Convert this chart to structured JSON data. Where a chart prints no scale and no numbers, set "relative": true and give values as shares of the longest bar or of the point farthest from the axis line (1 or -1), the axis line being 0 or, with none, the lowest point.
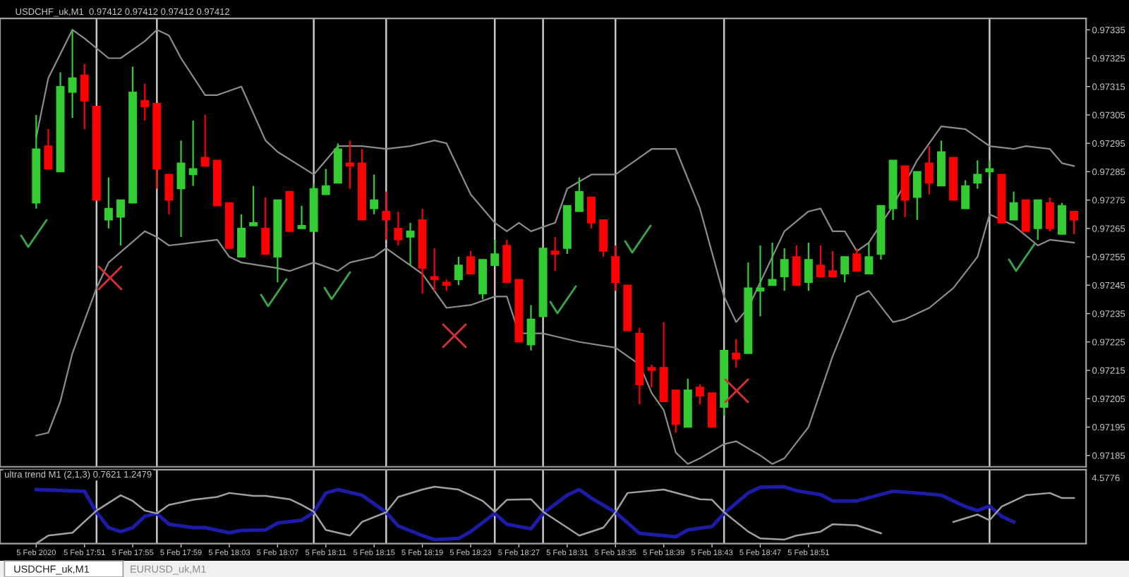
{
  "chart_data": [
    {
      "type": "candlestick",
      "title": "USDCHF_uk,M1  0.97412 0.97412 0.97412 0.97412",
      "x": [
        "2020-02-05T17:47",
        "2020-02-05T17:48",
        "2020-02-05T17:49",
        "2020-02-05T17:50",
        "2020-02-05T17:51",
        "2020-02-05T17:52",
        "2020-02-05T17:53",
        "2020-02-05T17:54",
        "2020-02-05T17:55",
        "2020-02-05T17:56",
        "2020-02-05T17:57",
        "2020-02-05T17:58",
        "2020-02-05T17:59",
        "2020-02-05T18:00",
        "2020-02-05T18:01",
        "2020-02-05T18:02",
        "2020-02-05T18:03",
        "2020-02-05T18:04",
        "2020-02-05T18:05",
        "2020-02-05T18:06",
        "2020-02-05T18:07",
        "2020-02-05T18:08",
        "2020-02-05T18:09",
        "2020-02-05T18:10",
        "2020-02-05T18:11",
        "2020-02-05T18:12",
        "2020-02-05T18:13",
        "2020-02-05T18:14",
        "2020-02-05T18:15",
        "2020-02-05T18:16",
        "2020-02-05T18:17",
        "2020-02-05T18:18",
        "2020-02-05T18:19",
        "2020-02-05T18:20",
        "2020-02-05T18:21",
        "2020-02-05T18:22",
        "2020-02-05T18:23",
        "2020-02-05T18:24",
        "2020-02-05T18:25",
        "2020-02-05T18:26",
        "2020-02-05T18:27",
        "2020-02-05T18:28",
        "2020-02-05T18:29",
        "2020-02-05T18:30",
        "2020-02-05T18:31",
        "2020-02-05T18:32",
        "2020-02-05T18:33",
        "2020-02-05T18:34",
        "2020-02-05T18:35",
        "2020-02-05T18:36",
        "2020-02-05T18:37",
        "2020-02-05T18:38",
        "2020-02-05T18:39",
        "2020-02-05T18:40",
        "2020-02-05T18:41",
        "2020-02-05T18:42",
        "2020-02-05T18:43",
        "2020-02-05T18:44",
        "2020-02-05T18:45",
        "2020-02-05T18:46",
        "2020-02-05T18:47",
        "2020-02-05T18:48",
        "2020-02-05T18:49",
        "2020-02-05T18:50",
        "2020-02-05T18:51",
        "2020-02-05T18:52",
        "2020-02-05T18:53",
        "2020-02-05T18:54",
        "2020-02-05T18:55",
        "2020-02-05T18:56",
        "2020-02-05T18:57",
        "2020-02-05T18:58",
        "2020-02-05T18:59",
        "2020-02-05T19:00",
        "2020-02-05T19:01",
        "2020-02-05T19:02",
        "2020-02-05T19:03",
        "2020-02-05T19:04",
        "2020-02-05T19:05",
        "2020-02-05T19:06",
        "2020-02-05T19:07",
        "2020-02-05T19:08",
        "2020-02-05T19:09",
        "2020-02-05T19:10",
        "2020-02-05T19:11",
        "2020-02-05T19:12",
        "2020-02-05T19:13"
      ],
      "ohlc": [
        [
          0.97274,
          0.97305,
          0.97272,
          0.97293
        ],
        [
          0.97294,
          0.973,
          0.97286,
          0.97286
        ],
        [
          0.97285,
          0.9732,
          0.97285,
          0.97315
        ],
        [
          0.97313,
          0.97335,
          0.97304,
          0.97318
        ],
        [
          0.97319,
          0.97323,
          0.973,
          0.9731
        ],
        [
          0.97308,
          0.97308,
          0.97275,
          0.97275
        ],
        [
          0.97268,
          0.97283,
          0.97265,
          0.97272
        ],
        [
          0.97269,
          0.97275,
          0.97259,
          0.97275
        ],
        [
          0.97274,
          0.97322,
          0.97274,
          0.97313
        ],
        [
          0.9731,
          0.97316,
          0.97303,
          0.97308
        ],
        [
          0.97309,
          0.97309,
          0.97279,
          0.97286
        ],
        [
          0.97284,
          0.97284,
          0.9727,
          0.97275
        ],
        [
          0.97279,
          0.97296,
          0.97262,
          0.97288
        ],
        [
          0.97284,
          0.97303,
          0.9728,
          0.97286
        ],
        [
          0.9729,
          0.97305,
          0.97287,
          0.97287
        ],
        [
          0.97289,
          0.97289,
          0.97273,
          0.97273
        ],
        [
          0.97274,
          0.97274,
          0.97258,
          0.97258
        ],
        [
          0.97255,
          0.9727,
          0.97255,
          0.97265
        ],
        [
          0.97266,
          0.9728,
          0.97266,
          0.97267
        ],
        [
          0.97265,
          0.97276,
          0.97256,
          0.97256
        ],
        [
          0.97255,
          0.97275,
          0.97246,
          0.97275
        ],
        [
          0.97278,
          0.97278,
          0.97264,
          0.97264
        ],
        [
          0.97265,
          0.97273,
          0.97265,
          0.97266
        ],
        [
          0.97264,
          0.97281,
          0.97264,
          0.97279
        ],
        [
          0.97277,
          0.97286,
          0.97277,
          0.9728
        ],
        [
          0.97281,
          0.97295,
          0.97281,
          0.97293
        ],
        [
          0.97288,
          0.97296,
          0.97279,
          0.97287
        ],
        [
          0.97288,
          0.97293,
          0.97268,
          0.97268
        ],
        [
          0.97272,
          0.97284,
          0.9727,
          0.97275
        ],
        [
          0.97271,
          0.97278,
          0.97261,
          0.97268
        ],
        [
          0.97265,
          0.97271,
          0.97259,
          0.97261
        ],
        [
          0.97262,
          0.97267,
          0.97252,
          0.97264
        ],
        [
          0.97268,
          0.97272,
          0.97242,
          0.97251
        ],
        [
          0.97248,
          0.97258,
          0.97243,
          0.97247
        ],
        [
          0.97246,
          0.97247,
          0.97243,
          0.97245
        ],
        [
          0.97247,
          0.97255,
          0.97245,
          0.97252
        ],
        [
          0.97255,
          0.97257,
          0.97249,
          0.97249
        ],
        [
          0.97242,
          0.97254,
          0.9724,
          0.97254
        ],
        [
          0.97252,
          0.97261,
          0.97252,
          0.97256
        ],
        [
          0.97259,
          0.97261,
          0.97246,
          0.97246
        ],
        [
          0.97247,
          0.97247,
          0.97225,
          0.97225
        ],
        [
          0.97224,
          0.97238,
          0.97222,
          0.97233
        ],
        [
          0.97234,
          0.97258,
          0.97234,
          0.97258
        ],
        [
          0.97257,
          0.97262,
          0.9725,
          0.97256
        ],
        [
          0.97258,
          0.97273,
          0.97256,
          0.97273
        ],
        [
          0.97271,
          0.97283,
          0.97271,
          0.97278
        ],
        [
          0.97276,
          0.97276,
          0.97265,
          0.97267
        ],
        [
          0.97268,
          0.97268,
          0.97255,
          0.97257
        ],
        [
          0.97255,
          0.97259,
          0.97243,
          0.97246
        ],
        [
          0.97245,
          0.97245,
          0.97229,
          0.97229
        ],
        [
          0.97228,
          0.9723,
          0.97203,
          0.9721
        ],
        [
          0.97216,
          0.97217,
          0.97209,
          0.97215
        ],
        [
          0.97216,
          0.97232,
          0.97204,
          0.97204
        ],
        [
          0.97208,
          0.97208,
          0.97193,
          0.97196
        ],
        [
          0.97195,
          0.97212,
          0.97195,
          0.97208
        ],
        [
          0.97209,
          0.9721,
          0.97203,
          0.97206
        ],
        [
          0.97207,
          0.97207,
          0.97195,
          0.97195
        ],
        [
          0.97202,
          0.97222,
          0.97199,
          0.97222
        ],
        [
          0.97221,
          0.97226,
          0.97216,
          0.97219
        ],
        [
          0.97221,
          0.97253,
          0.97221,
          0.97244
        ],
        [
          0.97243,
          0.97259,
          0.97234,
          0.97244
        ],
        [
          0.97245,
          0.9726,
          0.97245,
          0.97247
        ],
        [
          0.97248,
          0.97258,
          0.97243,
          0.97254
        ],
        [
          0.97255,
          0.97259,
          0.97245,
          0.97245
        ],
        [
          0.97246,
          0.9726,
          0.97243,
          0.97254
        ],
        [
          0.97252,
          0.97259,
          0.97248,
          0.97248
        ],
        [
          0.9725,
          0.97257,
          0.97248,
          0.97248
        ],
        [
          0.97249,
          0.97255,
          0.97246,
          0.97255
        ],
        [
          0.97256,
          0.97258,
          0.9725,
          0.9725
        ],
        [
          0.97249,
          0.9726,
          0.97249,
          0.97255
        ],
        [
          0.97256,
          0.97273,
          0.97254,
          0.97273
        ],
        [
          0.97272,
          0.97289,
          0.97268,
          0.97289
        ],
        [
          0.97287,
          0.97287,
          0.97269,
          0.97275
        ],
        [
          0.97276,
          0.97285,
          0.97268,
          0.97285
        ],
        [
          0.97288,
          0.97294,
          0.97277,
          0.97281
        ],
        [
          0.9728,
          0.97296,
          0.9728,
          0.97292
        ],
        [
          0.9729,
          0.9729,
          0.97275,
          0.97275
        ],
        [
          0.97272,
          0.97282,
          0.97272,
          0.9728
        ],
        [
          0.97281,
          0.97289,
          0.97279,
          0.97284
        ],
        [
          0.97285,
          0.97289,
          0.97283,
          0.97286
        ],
        [
          0.97284,
          0.97284,
          0.97267,
          0.97267
        ],
        [
          0.97268,
          0.97278,
          0.97268,
          0.97274
        ],
        [
          0.97275,
          0.97275,
          0.97264,
          0.97264
        ],
        [
          0.97265,
          0.97275,
          0.97261,
          0.97275
        ],
        [
          0.97274,
          0.97276,
          0.97264,
          0.97265
        ],
        [
          0.97263,
          0.97274,
          0.97263,
          0.97273
        ],
        [
          0.97271,
          0.97271,
          0.97263,
          0.97268
        ]
      ],
      "colors": [
        "#33cc33",
        "#ff0000",
        "#33cc33",
        "#33cc33",
        "#ff0000",
        "#ff0000",
        "#33cc33",
        "#33cc33",
        "#33cc33",
        "#ff0000",
        "#ff0000",
        "#ff0000",
        "#33cc33",
        "#33cc33",
        "#ff0000",
        "#ff0000",
        "#ff0000",
        "#33cc33",
        "#33cc33",
        "#ff0000",
        "#33cc33",
        "#ff0000",
        "#33cc33",
        "#33cc33",
        "#33cc33",
        "#33cc33",
        "#ff0000",
        "#ff0000",
        "#33cc33",
        "#ff0000",
        "#ff0000",
        "#33cc33",
        "#ff0000",
        "#ff0000",
        "#ff0000",
        "#33cc33",
        "#ff0000",
        "#33cc33",
        "#33cc33",
        "#ff0000",
        "#ff0000",
        "#33cc33",
        "#33cc33",
        "#ff0000",
        "#33cc33",
        "#33cc33",
        "#ff0000",
        "#ff0000",
        "#ff0000",
        "#ff0000",
        "#ff0000",
        "#ff0000",
        "#ff0000",
        "#ff0000",
        "#33cc33",
        "#ff0000",
        "#ff0000",
        "#33cc33",
        "#ff0000",
        "#33cc33",
        "#33cc33",
        "#33cc33",
        "#33cc33",
        "#ff0000",
        "#33cc33",
        "#ff0000",
        "#ff0000",
        "#33cc33",
        "#ff0000",
        "#33cc33",
        "#33cc33",
        "#33cc33",
        "#ff0000",
        "#33cc33",
        "#ff0000",
        "#33cc33",
        "#ff0000",
        "#33cc33",
        "#33cc33",
        "#33cc33",
        "#ff0000",
        "#33cc33",
        "#ff0000",
        "#33cc33",
        "#ff0000",
        "#33cc33",
        "#ff0000"
      ],
      "series": [
        {
          "type": "line",
          "color": "#8c8c8c",
          "x": [
            "2020-02-05T17:47",
            "2020-02-05T17:48",
            "2020-02-05T17:50",
            "2020-02-05T17:51",
            "2020-02-05T17:53",
            "2020-02-05T17:54",
            "2020-02-05T17:56",
            "2020-02-05T17:57",
            "2020-02-05T17:58",
            "2020-02-05T17:59",
            "2020-02-05T18:01",
            "2020-02-05T18:02",
            "2020-02-05T18:04",
            "2020-02-05T18:06",
            "2020-02-05T18:07",
            "2020-02-05T18:10",
            "2020-02-05T18:12",
            "2020-02-05T18:14",
            "2020-02-05T18:16",
            "2020-02-05T18:18",
            "2020-02-05T18:20",
            "2020-02-05T18:21",
            "2020-02-05T18:23",
            "2020-02-05T18:25",
            "2020-02-05T18:26",
            "2020-02-05T18:27",
            "2020-02-05T18:28",
            "2020-02-05T18:30",
            "2020-02-05T18:31",
            "2020-02-05T18:33",
            "2020-02-05T18:35",
            "2020-02-05T18:37",
            "2020-02-05T18:38",
            "2020-02-05T18:40",
            "2020-02-05T18:42",
            "2020-02-05T18:44",
            "2020-02-05T18:45",
            "2020-02-05T18:46",
            "2020-02-05T18:49",
            "2020-02-05T18:51",
            "2020-02-05T18:52",
            "2020-02-05T18:53",
            "2020-02-05T18:54",
            "2020-02-05T18:55",
            "2020-02-05T18:56",
            "2020-02-05T18:58",
            "2020-02-05T19:00",
            "2020-02-05T19:02",
            "2020-02-05T19:04",
            "2020-02-05T19:06",
            "2020-02-05T19:08",
            "2020-02-05T19:09",
            "2020-02-05T19:11",
            "2020-02-05T19:12",
            "2020-02-05T19:13"
          ],
          "values": [
            0.97297,
            0.97318,
            0.97335,
            0.97332,
            0.97325,
            0.97325,
            0.97331,
            0.97335,
            0.97333,
            0.97325,
            0.97312,
            0.97312,
            0.97315,
            0.97296,
            0.97292,
            0.97284,
            0.97294,
            0.97294,
            0.97293,
            0.97294,
            0.97296,
            0.97295,
            0.97277,
            0.97267,
            0.97264,
            0.97267,
            0.97264,
            0.97267,
            0.97279,
            0.97284,
            0.97284,
            0.9729,
            0.97293,
            0.97293,
            0.97272,
            0.97241,
            0.97232,
            0.97237,
            0.97264,
            0.97271,
            0.97272,
            0.97264,
            0.97264,
            0.97257,
            0.9726,
            0.97273,
            0.97289,
            0.97301,
            0.973,
            0.97294,
            0.97293,
            0.97294,
            0.97293,
            0.97288,
            0.97287
          ]
        },
        {
          "type": "line",
          "color": "#8c8c8c",
          "x": [
            "2020-02-05T17:47",
            "2020-02-05T17:48",
            "2020-02-05T17:49",
            "2020-02-05T17:50",
            "2020-02-05T17:52",
            "2020-02-05T17:53",
            "2020-02-05T17:56",
            "2020-02-05T17:57",
            "2020-02-05T17:58",
            "2020-02-05T18:00",
            "2020-02-05T18:02",
            "2020-02-05T18:03",
            "2020-02-05T18:04",
            "2020-02-05T18:07",
            "2020-02-05T18:08",
            "2020-02-05T18:10",
            "2020-02-05T18:12",
            "2020-02-05T18:13",
            "2020-02-05T18:15",
            "2020-02-05T18:16",
            "2020-02-05T18:17",
            "2020-02-05T18:19",
            "2020-02-05T18:21",
            "2020-02-05T18:23",
            "2020-02-05T18:25",
            "2020-02-05T18:26",
            "2020-02-05T18:27",
            "2020-02-05T18:29",
            "2020-02-05T18:30",
            "2020-02-05T18:32",
            "2020-02-05T18:35",
            "2020-02-05T18:37",
            "2020-02-05T18:38",
            "2020-02-05T18:39",
            "2020-02-05T18:40",
            "2020-02-05T18:41",
            "2020-02-05T18:42",
            "2020-02-05T18:44",
            "2020-02-05T18:45",
            "2020-02-05T18:47",
            "2020-02-05T18:48",
            "2020-02-05T18:49",
            "2020-02-05T18:51",
            "2020-02-05T18:53",
            "2020-02-05T18:55",
            "2020-02-05T18:56",
            "2020-02-05T18:58",
            "2020-02-05T18:59",
            "2020-02-05T19:01",
            "2020-02-05T19:03",
            "2020-02-05T19:05",
            "2020-02-05T19:06",
            "2020-02-05T19:08",
            "2020-02-05T19:10",
            "2020-02-05T19:11",
            "2020-02-05T19:13"
          ],
          "values": [
            0.97192,
            0.97193,
            0.97204,
            0.97221,
            0.97244,
            0.97253,
            0.97264,
            0.97262,
            0.97259,
            0.9726,
            0.97261,
            0.97255,
            0.97253,
            0.97251,
            0.9725,
            0.97253,
            0.9725,
            0.97253,
            0.97255,
            0.97258,
            0.97255,
            0.97249,
            0.97237,
            0.97238,
            0.97241,
            0.97241,
            0.97228,
            0.97228,
            0.97227,
            0.97225,
            0.97223,
            0.97217,
            0.97207,
            0.97201,
            0.97186,
            0.97182,
            0.97184,
            0.97189,
            0.9719,
            0.97185,
            0.97182,
            0.97184,
            0.97195,
            0.9722,
            0.97241,
            0.97243,
            0.97232,
            0.97233,
            0.97237,
            0.97244,
            0.97255,
            0.9727,
            0.97266,
            0.97259,
            0.97261,
            0.9726
          ]
        }
      ],
      "xlim": [
        "2020-02-05T17:44",
        "2020-02-05T19:14"
      ],
      "ylim": [
        0.97181,
        0.97339
      ],
      "yticks": [
        0.97185,
        0.97195,
        0.97205,
        0.97215,
        0.97225,
        0.97235,
        0.97245,
        0.97255,
        0.97265,
        0.97275,
        0.97285,
        0.97295,
        0.97305,
        0.97315,
        0.97325,
        0.97335
      ],
      "ref_lines": [
        {
          "axis": "x",
          "value": "2020-02-05T17:52",
          "color": "#c8c8c8"
        },
        {
          "axis": "x",
          "value": "2020-02-05T17:57",
          "color": "#c8c8c8"
        },
        {
          "axis": "x",
          "value": "2020-02-05T18:10",
          "color": "#c8c8c8"
        },
        {
          "axis": "x",
          "value": "2020-02-05T18:16",
          "color": "#c8c8c8"
        },
        {
          "axis": "x",
          "value": "2020-02-05T18:25",
          "color": "#c8c8c8"
        },
        {
          "axis": "x",
          "value": "2020-02-05T18:29",
          "color": "#c8c8c8"
        },
        {
          "axis": "x",
          "value": "2020-02-05T18:35",
          "color": "#c8c8c8"
        },
        {
          "axis": "x",
          "value": "2020-02-05T18:44",
          "color": "#c8c8c8"
        },
        {
          "axis": "x",
          "value": "2020-02-05T19:06",
          "color": "#c8c8c8"
        }
      ],
      "tick_labels": "y",
      "grid": false,
      "legend": false
    },
    {
      "type": "line",
      "relative": true,
      "annotations": [
        "ultra trend M1 (2,1,3) 0.7621 1.2479",
        "4.5776",
        "USDCHF_uk,M1",
        "EURUSD_uk,M1"
      ],
      "series": [
        {
          "color": "#1c1ca8",
          "x": [
            "2020-02-05T17:47",
            "2020-02-05T17:51",
            "2020-02-05T17:52",
            "2020-02-05T17:53",
            "2020-02-05T17:54",
            "2020-02-05T17:55",
            "2020-02-05T17:56",
            "2020-02-05T17:57",
            "2020-02-05T17:58",
            "2020-02-05T18:00",
            "2020-02-05T18:01",
            "2020-02-05T18:03",
            "2020-02-05T18:04",
            "2020-02-05T18:06",
            "2020-02-05T18:07",
            "2020-02-05T18:09",
            "2020-02-05T18:10",
            "2020-02-05T18:11",
            "2020-02-05T18:12",
            "2020-02-05T18:14",
            "2020-02-05T18:16",
            "2020-02-05T18:17",
            "2020-02-05T18:19",
            "2020-02-05T18:20",
            "2020-02-05T18:22",
            "2020-02-05T18:23",
            "2020-02-05T18:25",
            "2020-02-05T18:26",
            "2020-02-05T18:28",
            "2020-02-05T18:29",
            "2020-02-05T18:31",
            "2020-02-05T18:32",
            "2020-02-05T18:33",
            "2020-02-05T18:35",
            "2020-02-05T18:37",
            "2020-02-05T18:38",
            "2020-02-05T18:40",
            "2020-02-05T18:41",
            "2020-02-05T18:43",
            "2020-02-05T18:44",
            "2020-02-05T18:46",
            "2020-02-05T18:47",
            "2020-02-05T18:49",
            "2020-02-05T18:50",
            "2020-02-05T18:52",
            "2020-02-05T18:53",
            "2020-02-05T18:55",
            "2020-02-05T18:58",
            "2020-02-05T19:00",
            "2020-02-05T19:02",
            "2020-02-05T19:04",
            "2020-02-05T19:05",
            "2020-02-05T19:06",
            "2020-02-05T19:07",
            "2020-02-05T19:08"
          ],
          "values": [
            0.95,
            0.92,
            0.55,
            0.28,
            0.21,
            0.28,
            0.48,
            0.53,
            0.34,
            0.28,
            0.28,
            0.19,
            0.23,
            0.24,
            0.36,
            0.41,
            0.55,
            0.89,
            0.95,
            0.85,
            0.55,
            0.31,
            0.14,
            0.07,
            0.09,
            0.21,
            0.53,
            0.34,
            0.26,
            0.53,
            0.85,
            0.95,
            0.8,
            0.55,
            0.18,
            0.16,
            0.12,
            0.24,
            0.3,
            0.53,
            0.89,
            0.99,
            1.0,
            0.93,
            0.86,
            0.75,
            0.75,
            0.92,
            0.89,
            0.85,
            0.65,
            0.58,
            0.66,
            0.48,
            0.38
          ]
        },
        {
          "color": "#a0a0a0",
          "x": [
            "2020-02-05T17:47",
            "2020-02-05T17:48",
            "2020-02-05T17:50",
            "2020-02-05T17:52",
            "2020-02-05T17:54",
            "2020-02-05T17:55",
            "2020-02-05T17:56",
            "2020-02-05T17:57",
            "2020-02-05T17:58",
            "2020-02-05T18:00",
            "2020-02-05T18:02",
            "2020-02-05T18:03",
            "2020-02-05T18:05",
            "2020-02-05T18:06",
            "2020-02-05T18:08",
            "2020-02-05T18:09",
            "2020-02-05T18:10",
            "2020-02-05T18:11",
            "2020-02-05T18:13",
            "2020-02-05T18:14",
            "2020-02-05T18:16",
            "2020-02-05T18:17",
            "2020-02-05T18:19",
            "2020-02-05T18:20",
            "2020-02-05T18:22",
            "2020-02-05T18:24",
            "2020-02-05T18:25",
            "2020-02-05T18:26",
            "2020-02-05T18:28",
            "2020-02-05T18:29",
            "2020-02-05T18:31",
            "2020-02-05T18:32",
            "2020-02-05T18:34",
            "2020-02-05T18:35",
            "2020-02-05T18:36",
            "2020-02-05T18:39",
            "2020-02-05T18:42",
            "2020-02-05T18:43",
            "2020-02-05T18:44",
            "2020-02-05T18:46",
            "2020-02-05T18:47",
            "2020-02-05T18:49",
            "2020-02-05T18:50",
            "2020-02-05T18:52",
            "2020-02-05T18:53",
            "2020-02-05T18:55",
            "2020-02-05T18:57",
            "2020-02-05T19:00",
            "2020-02-05T19:03",
            "2020-02-05T19:05",
            "2020-02-05T19:06",
            "2020-02-05T19:07",
            "2020-02-05T19:09",
            "2020-02-05T19:11",
            "2020-02-05T19:12",
            "2020-02-05T19:13"
          ],
          "values": [
            0,
            0.14,
            0.19,
            0.58,
            0.85,
            0.75,
            0.58,
            0.53,
            0.68,
            0.77,
            0.82,
            0.89,
            0.84,
            0.84,
            0.78,
            0.68,
            0.56,
            0.24,
            0.14,
            0.38,
            0.55,
            0.82,
            0.95,
            1.0,
            0.95,
            0.75,
            0.56,
            0.77,
            0.78,
            0.56,
            0.28,
            0.14,
            0.28,
            0.55,
            0.89,
            0.95,
            0.78,
            0.77,
            0.55,
            0.21,
            0.09,
            0.07,
            0.14,
            0.21,
            0.34,
            0.32,
            0.18,
            null,
            0.38,
            0.51,
            0.41,
            0.65,
            0.85,
            0.89,
            0.8,
            0.8
          ]
        }
      ],
      "xlim": [
        "2020-02-05T17:44",
        "2020-02-05T19:14"
      ],
      "xticks": [
        {
          "value": "2020-02-05T17:47",
          "label": "5 Feb 2020"
        },
        {
          "value": "2020-02-05T17:51",
          "label": "5 Feb 17:51"
        },
        {
          "value": "2020-02-05T17:55",
          "label": "5 Feb 17:55"
        },
        {
          "value": "2020-02-05T17:59",
          "label": "5 Feb 17:59"
        },
        {
          "value": "2020-02-05T18:03",
          "label": "5 Feb 18:03"
        },
        {
          "value": "2020-02-05T18:07",
          "label": "5 Feb 18:07"
        },
        {
          "value": "2020-02-05T18:11",
          "label": "5 Feb 18:11"
        },
        {
          "value": "2020-02-05T18:15",
          "label": "5 Feb 18:15"
        },
        {
          "value": "2020-02-05T18:19",
          "label": "5 Feb 18:19"
        },
        {
          "value": "2020-02-05T18:23",
          "label": "5 Feb 18:23"
        },
        {
          "value": "2020-02-05T18:27",
          "label": "5 Feb 18:27"
        },
        {
          "value": "2020-02-05T18:31",
          "label": "5 Feb 18:31"
        },
        {
          "value": "2020-02-05T18:35",
          "label": "5 Feb 18:35"
        },
        {
          "value": "2020-02-05T18:39",
          "label": "5 Feb 18:39"
        },
        {
          "value": "2020-02-05T18:43",
          "label": "5 Feb 18:43"
        },
        {
          "value": "2020-02-05T18:47",
          "label": "5 Feb 18:47"
        },
        {
          "value": "2020-02-05T18:51",
          "label": "5 Feb 18:51"
        }
      ],
      "ref_lines": [
        {
          "axis": "x",
          "value": "2020-02-05T17:52",
          "color": "#c8c8c8"
        },
        {
          "axis": "x",
          "value": "2020-02-05T17:57",
          "color": "#c8c8c8"
        },
        {
          "axis": "x",
          "value": "2020-02-05T18:10",
          "color": "#c8c8c8"
        },
        {
          "axis": "x",
          "value": "2020-02-05T18:16",
          "color": "#c8c8c8"
        },
        {
          "axis": "x",
          "value": "2020-02-05T18:25",
          "color": "#c8c8c8"
        },
        {
          "axis": "x",
          "value": "2020-02-05T18:29",
          "color": "#c8c8c8"
        },
        {
          "axis": "x",
          "value": "2020-02-05T18:35",
          "color": "#c8c8c8"
        },
        {
          "axis": "x",
          "value": "2020-02-05T18:44",
          "color": "#c8c8c8"
        },
        {
          "axis": "x",
          "value": "2020-02-05T19:06",
          "color": "#c8c8c8"
        }
      ],
      "tick_labels": "x",
      "grid": false,
      "legend": false
    }
  ]
}
